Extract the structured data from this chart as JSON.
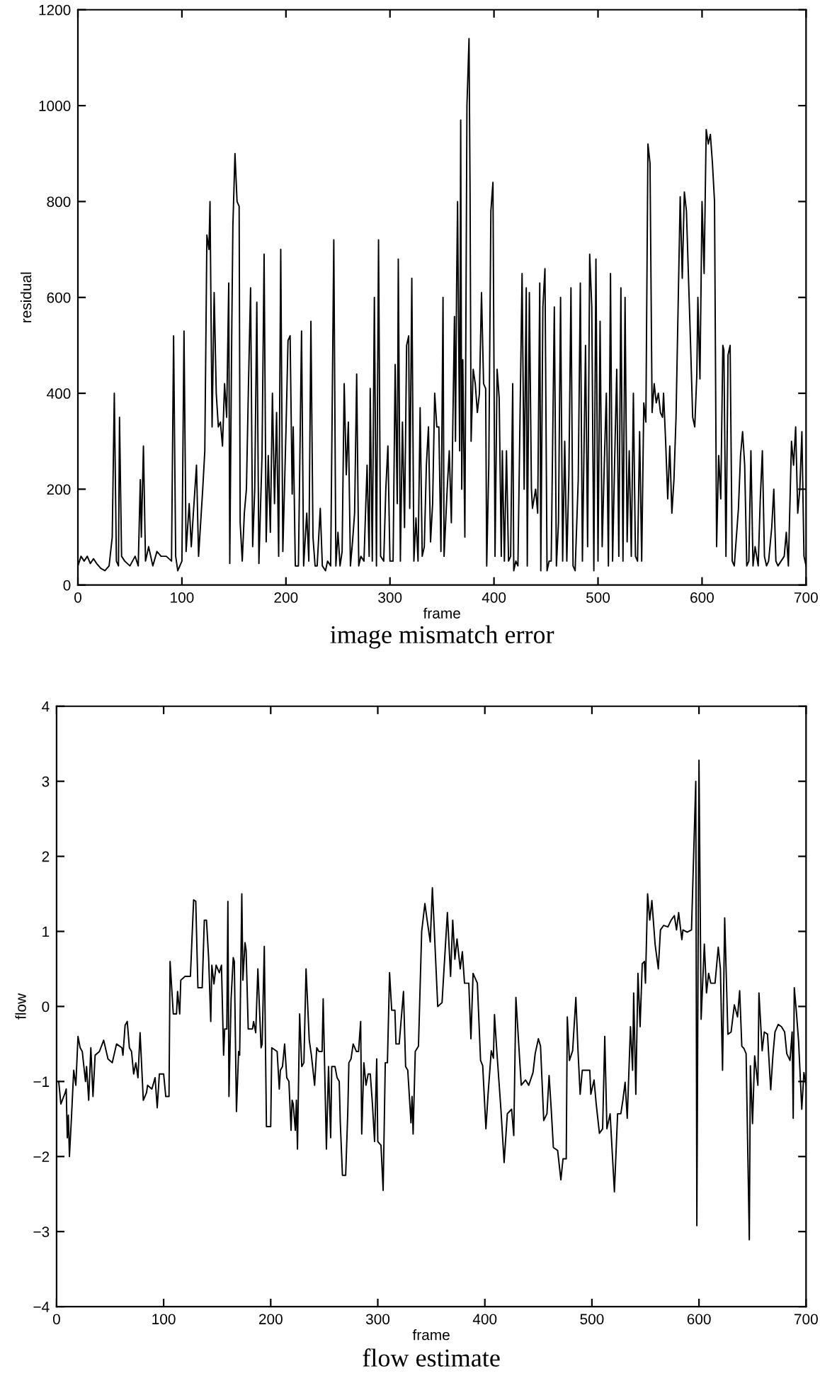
{
  "chart_data": [
    {
      "type": "line",
      "title": "image mismatch error",
      "xlabel": "frame",
      "ylabel": "residual",
      "xlim": [
        0,
        700
      ],
      "ylim": [
        0,
        1200
      ],
      "xticks": [
        0,
        100,
        200,
        300,
        400,
        500,
        600,
        700
      ],
      "yticks": [
        0,
        200,
        400,
        600,
        800,
        1000,
        1200
      ],
      "grid": false,
      "marker": "none",
      "line_style": "solid",
      "series": [
        {
          "color": "#000000",
          "x": [
            0,
            3,
            6,
            9,
            12,
            15,
            18,
            22,
            26,
            30,
            33,
            35,
            37,
            39,
            40,
            42,
            45,
            50,
            55,
            58,
            60,
            61,
            63,
            65,
            68,
            72,
            76,
            80,
            85,
            90,
            92,
            94,
            96,
            100,
            102,
            104,
            107,
            109,
            111,
            114,
            116,
            120,
            122,
            124,
            126,
            127,
            129,
            131,
            133,
            135,
            137,
            139,
            141,
            143,
            145,
            146,
            148,
            149,
            151,
            153,
            155,
            156,
            158,
            160,
            162,
            164,
            166,
            168,
            170,
            172,
            174,
            177,
            179,
            181,
            183,
            185,
            187,
            189,
            191,
            193,
            195,
            197,
            200,
            202,
            204,
            206,
            207,
            209,
            212,
            215,
            217,
            220,
            222,
            224,
            226,
            228,
            230,
            233,
            235,
            238,
            240,
            243,
            246,
            248,
            250,
            252,
            254,
            256,
            258,
            260,
            262,
            264,
            266,
            268,
            270,
            272,
            275,
            278,
            280,
            281,
            283,
            285,
            287,
            289,
            291,
            294,
            296,
            298,
            300,
            303,
            305,
            307,
            308,
            310,
            312,
            314,
            316,
            318,
            319,
            321,
            323,
            325,
            327,
            329,
            331,
            333,
            335,
            337,
            339,
            341,
            343,
            345,
            347,
            349,
            351,
            352,
            355,
            357,
            359,
            362,
            363,
            364,
            365,
            366,
            367,
            368,
            369,
            370,
            372,
            374,
            376,
            377,
            378,
            380,
            382,
            384,
            386,
            388,
            390,
            392,
            393,
            395,
            397,
            399,
            401,
            403,
            405,
            407,
            408,
            410,
            412,
            414,
            416,
            418,
            419,
            421,
            423,
            427,
            429,
            431,
            432,
            434,
            436,
            437,
            440,
            442,
            444,
            445,
            447,
            449,
            451,
            453,
            455,
            458,
            460,
            462,
            464,
            466,
            468,
            470,
            472,
            474,
            476,
            478,
            481,
            483,
            485,
            488,
            490,
            492,
            494,
            496,
            498,
            500,
            502,
            504,
            506,
            508,
            510,
            512,
            514,
            516,
            518,
            520,
            522,
            524,
            526,
            528,
            530,
            532,
            534,
            536,
            538,
            540,
            542,
            544,
            546,
            548,
            550,
            552,
            554,
            556,
            558,
            560,
            562,
            563,
            565,
            567,
            569,
            571,
            573,
            575,
            577,
            579,
            581,
            583,
            585,
            587,
            589,
            591,
            593,
            595,
            596,
            598,
            600,
            602,
            604,
            606,
            608,
            610,
            612,
            614,
            616,
            618,
            620,
            621,
            623,
            625,
            627,
            629,
            631,
            633,
            635,
            637,
            639,
            641,
            643,
            645,
            647,
            649,
            651,
            654,
            656,
            658,
            660,
            662,
            664,
            667,
            669,
            671,
            673,
            676,
            679,
            681,
            683,
            686,
            688,
            690,
            692,
            694,
            696,
            698,
            700
          ],
          "values": [
            40,
            60,
            50,
            60,
            45,
            55,
            45,
            35,
            30,
            40,
            100,
            400,
            50,
            40,
            350,
            60,
            50,
            40,
            60,
            40,
            220,
            100,
            290,
            50,
            80,
            40,
            70,
            60,
            60,
            50,
            520,
            60,
            30,
            50,
            530,
            70,
            170,
            80,
            150,
            250,
            60,
            200,
            280,
            730,
            700,
            800,
            330,
            610,
            400,
            330,
            340,
            290,
            420,
            350,
            630,
            45,
            550,
            750,
            900,
            800,
            790,
            130,
            50,
            150,
            200,
            420,
            620,
            80,
            200,
            590,
            45,
            270,
            690,
            90,
            270,
            110,
            400,
            170,
            360,
            60,
            700,
            70,
            320,
            510,
            520,
            190,
            330,
            40,
            40,
            530,
            40,
            150,
            50,
            550,
            100,
            40,
            40,
            160,
            40,
            30,
            50,
            40,
            720,
            40,
            110,
            40,
            70,
            420,
            230,
            340,
            40,
            90,
            150,
            440,
            40,
            60,
            50,
            250,
            60,
            410,
            50,
            600,
            40,
            720,
            60,
            50,
            200,
            290,
            50,
            50,
            460,
            170,
            680,
            50,
            340,
            120,
            500,
            520,
            160,
            640,
            50,
            140,
            50,
            370,
            60,
            80,
            250,
            330,
            90,
            170,
            400,
            330,
            330,
            70,
            600,
            60,
            200,
            280,
            130,
            560,
            300,
            610,
            800,
            530,
            280,
            970,
            200,
            470,
            100,
            1000,
            1140,
            820,
            300,
            450,
            420,
            360,
            400,
            610,
            420,
            410,
            40,
            250,
            780,
            840,
            60,
            450,
            390,
            60,
            280,
            50,
            280,
            50,
            60,
            420,
            30,
            50,
            40,
            650,
            200,
            620,
            40,
            610,
            200,
            160,
            200,
            150,
            630,
            30,
            580,
            660,
            30,
            50,
            50,
            580,
            40,
            130,
            600,
            50,
            300,
            50,
            230,
            620,
            40,
            30,
            220,
            630,
            50,
            500,
            80,
            690,
            580,
            30,
            680,
            50,
            550,
            80,
            250,
            400,
            40,
            650,
            50,
            260,
            450,
            60,
            620,
            50,
            600,
            90,
            280,
            60,
            400,
            60,
            50,
            320,
            50,
            380,
            340,
            920,
            880,
            360,
            420,
            380,
            400,
            360,
            350,
            400,
            300,
            180,
            290,
            150,
            220,
            350,
            580,
            810,
            640,
            820,
            780,
            640,
            500,
            350,
            330,
            440,
            600,
            430,
            800,
            650,
            950,
            920,
            940,
            880,
            800,
            80,
            270,
            180,
            500,
            490,
            60,
            480,
            500,
            50,
            40,
            100,
            160,
            270,
            320,
            250,
            40,
            50,
            280,
            40,
            80,
            40,
            180,
            280,
            60,
            40,
            50,
            120,
            200,
            50,
            40,
            50,
            60,
            110,
            40,
            300,
            250,
            330,
            150,
            200,
            320,
            60,
            40
          ]
        }
      ]
    },
    {
      "type": "line",
      "title": "flow estimate",
      "xlabel": "frame",
      "ylabel": "flow",
      "xlim": [
        0,
        700
      ],
      "ylim": [
        -4,
        4
      ],
      "xticks": [
        0,
        100,
        200,
        300,
        400,
        500,
        600,
        700
      ],
      "yticks": [
        {
          "value": -4,
          "label": "−4"
        },
        {
          "value": -3,
          "label": "−3"
        },
        {
          "value": -2,
          "label": "−2"
        },
        {
          "value": -1,
          "label": "−1"
        },
        0,
        1,
        2,
        3,
        4
      ],
      "grid": false,
      "marker": "none",
      "line_style": "solid",
      "series": [
        {
          "color": "#000000",
          "x": [
            2,
            4,
            8,
            9,
            10,
            11,
            12,
            14,
            16,
            18,
            20,
            22,
            24,
            27,
            28,
            30,
            32,
            34,
            36,
            40,
            44,
            48,
            52,
            56,
            61,
            62,
            64,
            66,
            68,
            70,
            72,
            74,
            76,
            78,
            81,
            84,
            85,
            89,
            92,
            94,
            96,
            100,
            102,
            105,
            106,
            109,
            112,
            113,
            115,
            116,
            120,
            125,
            128,
            130,
            132,
            136,
            138,
            140,
            142,
            144,
            145,
            147,
            149,
            152,
            154,
            156,
            157,
            159,
            160,
            161,
            163,
            165,
            166,
            168,
            170,
            171,
            173,
            174,
            176,
            177,
            179,
            183,
            184,
            186,
            188,
            191,
            192,
            194,
            196,
            200,
            201,
            206,
            208,
            209,
            211,
            213,
            215,
            217,
            219,
            220,
            221,
            223,
            224,
            225,
            227,
            229,
            231,
            233,
            236,
            238,
            241,
            243,
            245,
            248,
            249,
            252,
            254,
            256,
            257,
            260,
            262,
            264,
            265,
            267,
            270,
            272,
            273,
            275,
            277,
            280,
            282,
            284,
            285,
            287,
            289,
            291,
            293,
            295,
            297,
            299,
            300,
            303,
            305,
            307,
            309,
            311,
            313,
            316,
            317,
            320,
            322,
            324,
            326,
            328,
            331,
            332,
            333,
            335,
            338,
            341,
            344,
            346,
            349,
            351,
            353,
            356,
            360,
            365,
            368,
            370,
            372,
            374,
            377,
            379,
            381,
            385,
            387,
            389,
            393,
            396,
            398,
            401,
            403,
            406,
            408,
            409,
            411,
            415,
            418,
            421,
            425,
            427,
            429,
            432,
            434,
            438,
            441,
            445,
            447,
            450,
            452,
            455,
            458,
            460,
            462,
            464,
            468,
            471,
            473,
            476,
            477,
            479,
            482,
            485,
            487,
            489,
            491,
            495,
            498,
            499,
            502,
            504,
            507,
            510,
            512,
            514,
            517,
            519,
            521,
            524,
            527,
            529,
            531,
            533,
            536,
            538,
            539,
            541,
            543,
            545,
            547,
            549,
            550,
            552,
            554,
            556,
            559,
            562,
            564,
            567,
            571,
            574,
            577,
            579,
            581,
            584,
            585,
            589,
            593,
            597,
            598,
            600,
            602,
            605,
            607,
            609,
            611,
            615,
            618,
            620,
            622,
            624,
            627,
            630,
            633,
            636,
            638,
            640,
            642,
            644,
            647,
            648,
            650,
            652,
            655,
            656,
            659,
            661,
            664,
            667,
            669,
            671,
            674,
            677,
            680,
            682,
            685,
            687,
            688,
            689,
            691,
            693,
            696,
            698,
            700
          ],
          "values": [
            -1.0,
            -1.3,
            -1.15,
            -1.1,
            -1.75,
            -1.45,
            -2.0,
            -1.45,
            -0.85,
            -1.05,
            -0.4,
            -0.55,
            -0.6,
            -1.0,
            -0.8,
            -1.25,
            -0.55,
            -1.2,
            -0.65,
            -0.6,
            -0.45,
            -0.7,
            -0.75,
            -0.5,
            -0.55,
            -0.65,
            -0.25,
            -0.2,
            -0.55,
            -0.6,
            -0.9,
            -0.75,
            -0.95,
            -0.35,
            -1.25,
            -1.15,
            -1.05,
            -1.1,
            -0.95,
            -1.35,
            -0.9,
            -0.9,
            -1.2,
            -1.2,
            0.6,
            -0.1,
            -0.1,
            0.2,
            -0.1,
            0.35,
            0.4,
            0.4,
            1.42,
            1.4,
            0.25,
            0.25,
            1.15,
            1.15,
            0.65,
            -0.2,
            0.55,
            0.3,
            0.55,
            0.45,
            0.55,
            -0.65,
            -0.3,
            -0.3,
            1.4,
            -1.2,
            0.1,
            0.65,
            0.6,
            -1.4,
            -0.6,
            -0.65,
            1.5,
            0.35,
            0.85,
            0.75,
            -0.3,
            -0.3,
            -0.2,
            -0.35,
            0.5,
            -0.55,
            -0.5,
            0.8,
            -1.6,
            -1.6,
            -0.55,
            -0.6,
            -1.1,
            -0.85,
            -0.8,
            -0.5,
            -0.95,
            -1.0,
            -1.65,
            -1.25,
            -1.3,
            -1.65,
            -1.25,
            -1.9,
            -0.1,
            -0.8,
            -0.75,
            0.5,
            -0.45,
            -0.65,
            -1.05,
            -0.55,
            -0.6,
            -0.6,
            0.1,
            -1.9,
            -0.8,
            -1.75,
            -0.8,
            -0.8,
            -0.95,
            -1.0,
            -1.55,
            -2.25,
            -2.25,
            -1.4,
            -0.75,
            -0.7,
            -0.5,
            -0.6,
            -0.6,
            -0.2,
            -1.7,
            -0.75,
            -1.05,
            -0.9,
            -0.9,
            -1.3,
            -1.8,
            -0.7,
            -1.8,
            -1.85,
            -2.45,
            -0.75,
            -0.75,
            0.45,
            -0.05,
            -0.05,
            -0.5,
            -0.5,
            -0.15,
            0.2,
            -0.8,
            -0.85,
            -1.55,
            -1.2,
            -1.7,
            -0.6,
            -0.53,
            1.0,
            1.37,
            1.16,
            0.86,
            1.58,
            0.95,
            0.0,
            0.05,
            1.25,
            0.4,
            1.15,
            0.63,
            0.9,
            0.5,
            0.73,
            0.31,
            0.31,
            -0.43,
            0.44,
            0.31,
            -0.72,
            -0.79,
            -1.63,
            -1.17,
            -0.59,
            -0.69,
            -0.11,
            -0.56,
            -1.37,
            -2.08,
            -1.43,
            -1.37,
            -1.72,
            0.12,
            -0.59,
            -1.05,
            -0.98,
            -1.05,
            -0.88,
            -0.63,
            -0.43,
            -0.53,
            -1.52,
            -1.43,
            -0.92,
            -1.37,
            -1.88,
            -1.92,
            -2.31,
            -2.03,
            -2.03,
            -0.14,
            -0.72,
            -0.59,
            0.12,
            -0.59,
            -1.17,
            -0.85,
            -0.85,
            -0.85,
            -1.17,
            -0.98,
            -1.3,
            -1.69,
            -1.63,
            -0.4,
            -1.63,
            -1.43,
            -1.95,
            -2.47,
            -1.43,
            -1.43,
            -1.24,
            -1.01,
            -1.49,
            -0.27,
            -0.85,
            0.18,
            -1.17,
            0.44,
            -0.27,
            0.57,
            0.6,
            0.31,
            1.5,
            1.15,
            1.41,
            0.83,
            0.5,
            1.02,
            1.08,
            1.06,
            1.15,
            1.21,
            1.02,
            1.25,
            0.89,
            1.02,
            0.99,
            1.02,
            3.0,
            -2.92,
            3.28,
            -0.17,
            0.83,
            0.18,
            0.44,
            0.31,
            0.31,
            0.79,
            0.5,
            -0.85,
            1.18,
            -0.37,
            -0.34,
            0.02,
            -0.14,
            0.21,
            -0.53,
            -0.56,
            -0.63,
            -3.11,
            -0.79,
            -1.56,
            -0.66,
            -1.05,
            0.18,
            -0.59,
            -0.34,
            -0.37,
            -1.11,
            -0.66,
            -0.34,
            -0.24,
            -0.27,
            -0.34,
            -0.63,
            -0.72,
            -0.34,
            -1.49,
            0.25,
            -0.08,
            -0.46,
            -1.37,
            -0.88,
            -1.05
          ]
        }
      ]
    }
  ]
}
